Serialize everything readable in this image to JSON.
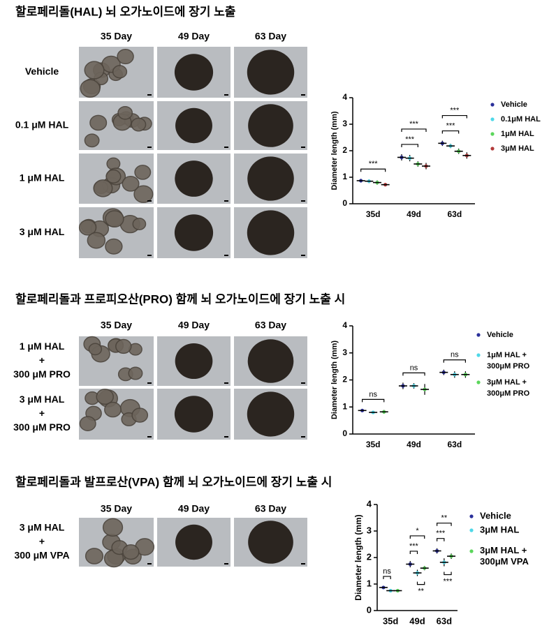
{
  "panels": [
    {
      "title": "할로페리돌(HAL) 뇌 오가노이드에 장기 노출",
      "columns": [
        "35 Day",
        "49 Day",
        "63 Day"
      ],
      "rows": [
        [
          "Vehicle"
        ],
        [
          "0.1 μM HAL"
        ],
        [
          "1 μM HAL"
        ],
        [
          "3 μM HAL"
        ]
      ]
    },
    {
      "title": "할로페리돌과 프로피오산(PRO) 함께  뇌 오가노이드에 장기 노출 시",
      "columns": [
        "35 Day",
        "49 Day",
        "63 Day"
      ],
      "rows": [
        [
          "1 μM HAL",
          "+",
          "300 μM PRO"
        ],
        [
          "3 μM HAL",
          "+",
          "300 μM PRO"
        ]
      ]
    },
    {
      "title": "할로페리돌과 발프로산(VPA) 함께  뇌 오가노이드에 장기 노출 시",
      "columns": [
        "35 Day",
        "49 Day",
        "63 Day"
      ],
      "rows": [
        [
          "3 μM HAL",
          "+",
          "300 μM VPA"
        ]
      ]
    }
  ],
  "chart_data": [
    {
      "type": "dot",
      "ylabel": "Diameter length (mm)",
      "categories": [
        "35d",
        "49d",
        "63d"
      ],
      "ylim": [
        0,
        4
      ],
      "yticks": [
        0,
        1,
        2,
        3,
        4
      ],
      "series": [
        {
          "name": "Vehicle",
          "color": "#2a2f9a",
          "values": [
            0.87,
            1.75,
            2.28
          ],
          "errors": [
            0.07,
            0.12,
            0.1
          ]
        },
        {
          "name": "0.1μM HAL",
          "color": "#4fd8e8",
          "values": [
            0.85,
            1.72,
            2.18
          ],
          "errors": [
            0.07,
            0.12,
            0.08
          ]
        },
        {
          "name": "1μM HAL",
          "color": "#5bd65b",
          "values": [
            0.8,
            1.5,
            1.98
          ],
          "errors": [
            0.08,
            0.1,
            0.1
          ]
        },
        {
          "name": "3μM HAL",
          "color": "#b23a3a",
          "values": [
            0.72,
            1.42,
            1.82
          ],
          "errors": [
            0.05,
            0.12,
            0.12
          ]
        }
      ],
      "annotations": [
        {
          "text": "***",
          "category": 0,
          "from": 0,
          "to": 3
        },
        {
          "text": "***",
          "category": 1,
          "from": 0,
          "to": 2
        },
        {
          "text": "***",
          "category": 1,
          "from": 0,
          "to": 3
        },
        {
          "text": "***",
          "category": 2,
          "from": 0,
          "to": 2
        },
        {
          "text": "***",
          "category": 2,
          "from": 0,
          "to": 3
        }
      ]
    },
    {
      "type": "dot",
      "ylabel": "Diameter length (mm)",
      "categories": [
        "35d",
        "49d",
        "63d"
      ],
      "ylim": [
        0,
        4
      ],
      "yticks": [
        0,
        1,
        2,
        3,
        4
      ],
      "series": [
        {
          "name": "Vehicle",
          "color": "#2a2f9a",
          "values": [
            0.87,
            1.78,
            2.28
          ],
          "errors": [
            0.05,
            0.12,
            0.1
          ]
        },
        {
          "name": "1μM HAL +\n300μM PRO",
          "color": "#4fd8e8",
          "values": [
            0.8,
            1.78,
            2.2
          ],
          "errors": [
            0.06,
            0.1,
            0.12
          ]
        },
        {
          "name": "3μM HAL +\n300μM PRO",
          "color": "#5bd65b",
          "values": [
            0.82,
            1.65,
            2.2
          ],
          "errors": [
            0.07,
            0.2,
            0.12
          ]
        }
      ],
      "annotations": [
        {
          "text": "ns",
          "category": 0,
          "from": 0,
          "to": 2
        },
        {
          "text": "ns",
          "category": 1,
          "from": 0,
          "to": 2
        },
        {
          "text": "ns",
          "category": 2,
          "from": 0,
          "to": 2
        }
      ]
    },
    {
      "type": "dot",
      "ylabel": "Diameter length (mm)",
      "categories": [
        "35d",
        "49d",
        "63d"
      ],
      "ylim": [
        0,
        4
      ],
      "yticks": [
        0,
        1,
        2,
        3,
        4
      ],
      "series": [
        {
          "name": "Vehicle",
          "color": "#2a2f9a",
          "values": [
            0.87,
            1.75,
            2.25
          ],
          "errors": [
            0.05,
            0.12,
            0.1
          ]
        },
        {
          "name": "3μM HAL",
          "color": "#4fd8e8",
          "values": [
            0.75,
            1.42,
            1.82
          ],
          "errors": [
            0.03,
            0.12,
            0.15
          ]
        },
        {
          "name": "3μM HAL +\n300μM VPA",
          "color": "#5bd65b",
          "values": [
            0.75,
            1.6,
            2.05
          ],
          "errors": [
            0.03,
            0.08,
            0.1
          ]
        }
      ],
      "annotations": [
        {
          "text": "ns",
          "category": 0,
          "from": 0,
          "to": 1
        },
        {
          "text": "***",
          "category": 1,
          "from": 0,
          "to": 1
        },
        {
          "text": "*",
          "category": 1,
          "from": 0,
          "to": 2
        },
        {
          "text": "**",
          "category": 1,
          "from": 1,
          "to": 2,
          "side": "below"
        },
        {
          "text": "***",
          "category": 2,
          "from": 0,
          "to": 1
        },
        {
          "text": "**",
          "category": 2,
          "from": 0,
          "to": 2
        },
        {
          "text": "***",
          "category": 2,
          "from": 1,
          "to": 2,
          "side": "below"
        }
      ]
    }
  ]
}
